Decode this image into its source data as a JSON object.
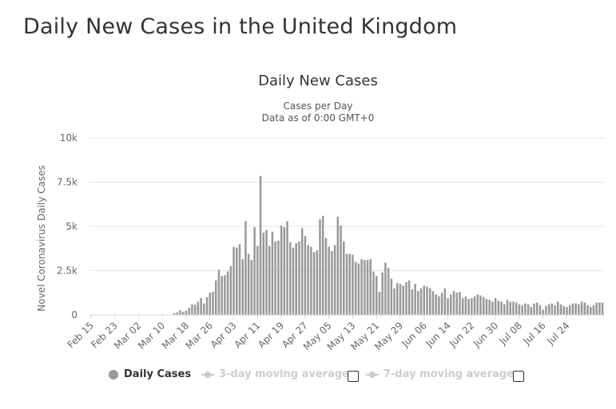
{
  "page": {
    "title": "Daily New Cases in the United Kingdom"
  },
  "chart_data": {
    "type": "bar",
    "title": "Daily New Cases",
    "subtitle_lines": [
      "Cases per Day",
      "Data as of 0:00 GMT+0"
    ],
    "ylabel": "Novel Coronavirus Daily Cases",
    "xlabel": "",
    "ylim": [
      0,
      10000
    ],
    "y_ticks": [
      0,
      2500,
      5000,
      7500,
      10000
    ],
    "y_tick_labels": [
      "0",
      "2.5k",
      "5k",
      "7.5k",
      "10k"
    ],
    "grid": true,
    "x_tick_labels": [
      "Feb 15",
      "Feb 23",
      "Mar 02",
      "Mar 10",
      "Mar 18",
      "Mar 26",
      "Apr 03",
      "Apr 11",
      "Apr 19",
      "Apr 27",
      "May 05",
      "May 13",
      "May 21",
      "May 29",
      "Jun 06",
      "Jun 14",
      "Jun 22",
      "Jun 30",
      "Jul 08",
      "Jul 16",
      "Jul 24"
    ],
    "start_date": "Feb 15",
    "bar_color": "#999999",
    "series": [
      {
        "name": "Daily Cases",
        "values": [
          0,
          0,
          0,
          0,
          0,
          0,
          0,
          0,
          0,
          0,
          0,
          0,
          0,
          0,
          0,
          0,
          0,
          0,
          0,
          0,
          0,
          0,
          0,
          0,
          0,
          0,
          0,
          0,
          100,
          150,
          270,
          180,
          240,
          400,
          600,
          580,
          750,
          950,
          650,
          1000,
          1250,
          1300,
          1950,
          2550,
          2200,
          2250,
          2450,
          2750,
          3850,
          3800,
          4000,
          3150,
          5300,
          3450,
          3100,
          4950,
          3900,
          7850,
          4650,
          4800,
          3900,
          4700,
          4150,
          4200,
          5050,
          4950,
          5300,
          4100,
          3800,
          4050,
          4150,
          4900,
          4450,
          3950,
          3850,
          3550,
          3650,
          5400,
          5600,
          4350,
          3850,
          3600,
          3950,
          5550,
          5050,
          4150,
          3450,
          3450,
          3400,
          3000,
          2900,
          3150,
          3100,
          3100,
          3150,
          2450,
          2200,
          1300,
          2400,
          2950,
          2650,
          2050,
          1500,
          1800,
          1750,
          1650,
          1850,
          1950,
          1450,
          1750,
          1350,
          1500,
          1650,
          1600,
          1500,
          1350,
          1150,
          1050,
          1250,
          1500,
          950,
          1150,
          1350,
          1250,
          1300,
          950,
          1050,
          900,
          950,
          1050,
          1150,
          1100,
          1000,
          900,
          850,
          750,
          950,
          800,
          750,
          600,
          850,
          750,
          750,
          700,
          600,
          550,
          650,
          600,
          450,
          650,
          700,
          550,
          300,
          500,
          600,
          650,
          550,
          750,
          600,
          500,
          450,
          550,
          650,
          650,
          600,
          750,
          700,
          550,
          450,
          550,
          700,
          700,
          700
        ]
      }
    ]
  },
  "legend": {
    "items": [
      {
        "label": "Daily Cases",
        "state": "active"
      },
      {
        "label": "3-day moving average",
        "state": "inactive"
      },
      {
        "label": "7-day moving average",
        "state": "inactive"
      }
    ]
  },
  "colors": {
    "bar": "#999999",
    "grid": "#e6e6e6",
    "axis_line": "#ccd6eb",
    "inactive_legend": "#cccccc"
  }
}
